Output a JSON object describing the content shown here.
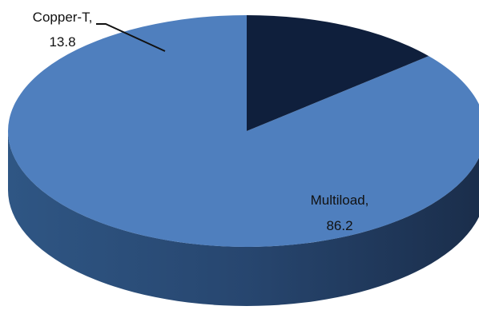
{
  "chart_data": {
    "type": "pie",
    "style": "3d",
    "slices": [
      {
        "label": "Copper-T",
        "value": 13.8,
        "color": "#0f1f3c"
      },
      {
        "label": "Multiload",
        "value": 86.2,
        "color": "#4f7fbe"
      }
    ],
    "data_labels": [
      {
        "name": "Copper-T,",
        "value": "13.8"
      },
      {
        "name": "Multiload,",
        "value": "86.2"
      }
    ],
    "start": "12 o'clock, clockwise",
    "legend": "none"
  }
}
